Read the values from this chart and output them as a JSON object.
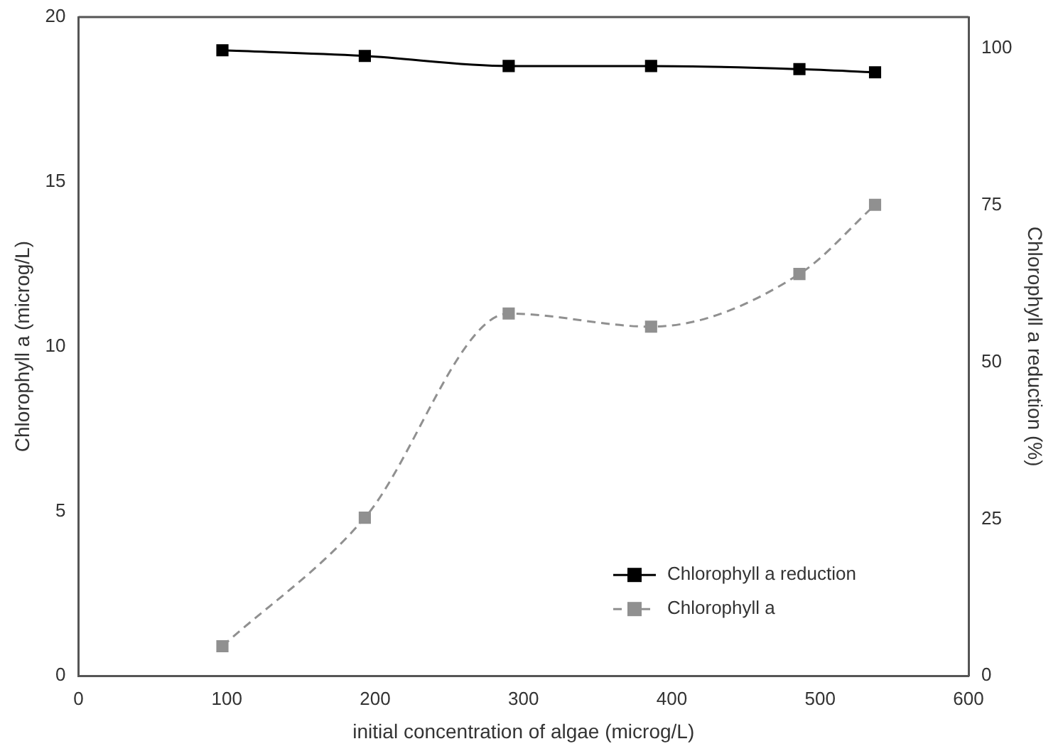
{
  "chart_data": {
    "type": "line",
    "xlabel": "initial concentration of algae (microg/L)",
    "ylabel": "Chlorophyll a (microg/L)",
    "y2label": "Chlorophyll a reduction (%)",
    "xlim": [
      0,
      600
    ],
    "xticks": [
      0,
      100,
      200,
      300,
      400,
      500,
      600
    ],
    "ylim": [
      0,
      20
    ],
    "yticks": [
      0,
      5,
      10,
      15,
      20
    ],
    "y2lim": [
      0,
      105
    ],
    "y2ticks": [
      0,
      25,
      50,
      75,
      100
    ],
    "x": [
      97,
      193,
      290,
      386,
      486,
      537
    ],
    "series": [
      {
        "name": "Chlorophyll a reduction",
        "color": "#000000",
        "axis": "y2",
        "line_style": "solid",
        "values": [
          99.7,
          98.8,
          97.2,
          97.2,
          96.7,
          96.2
        ]
      },
      {
        "name": "Chlorophyll a",
        "color": "#909090",
        "axis": "y",
        "line_style": "dashed",
        "values": [
          0.9,
          4.8,
          11.0,
          10.6,
          12.2,
          14.3
        ]
      }
    ],
    "marker": "square",
    "legend": "bottom right",
    "grid": false
  }
}
